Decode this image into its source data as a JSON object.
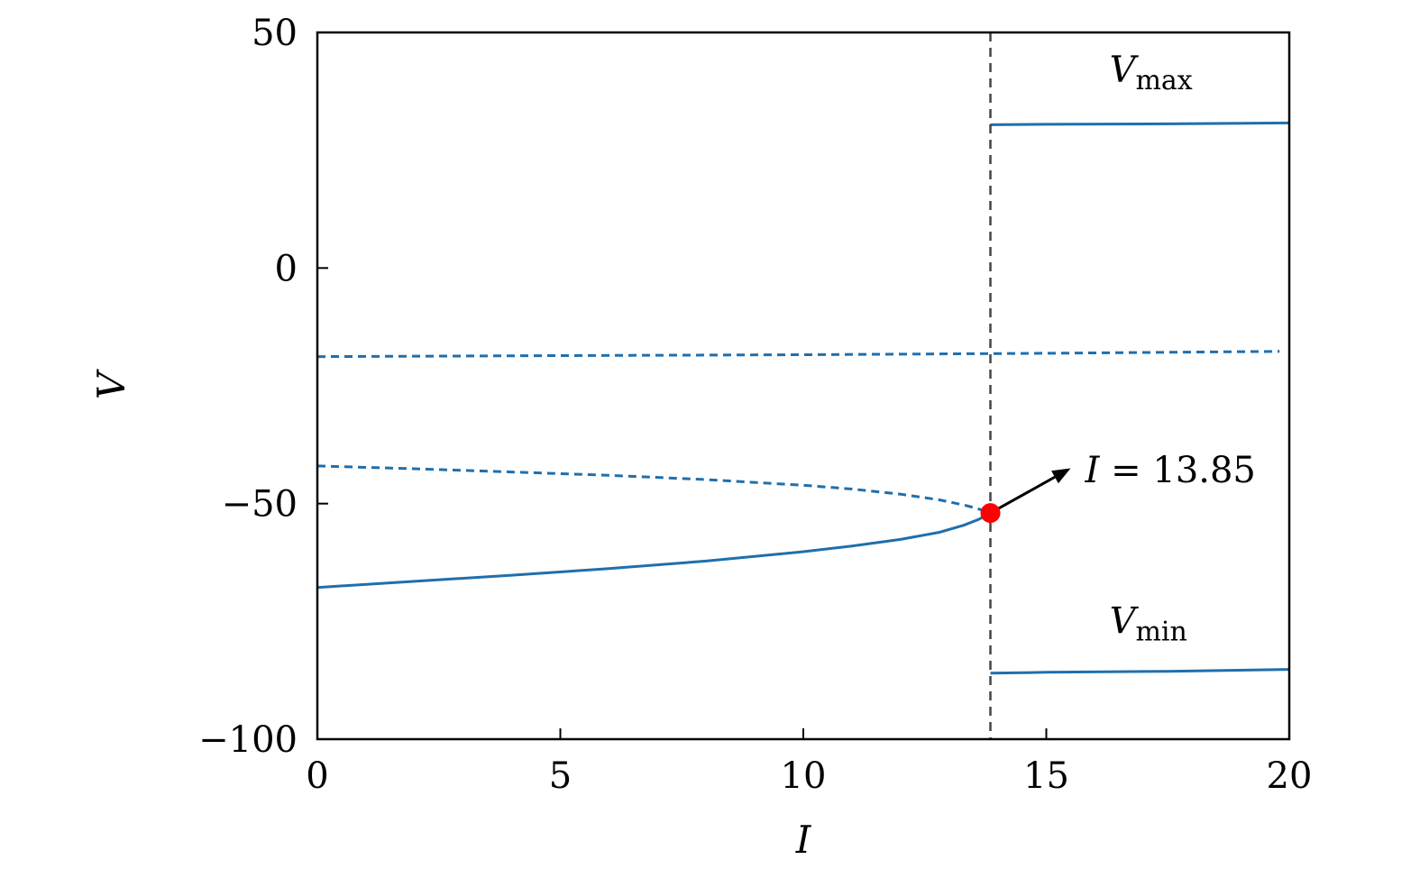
{
  "chart_data": {
    "type": "line",
    "xlabel": "I",
    "ylabel": "V",
    "xlim": [
      0,
      20
    ],
    "ylim": [
      -100,
      50
    ],
    "xticks": [
      0,
      5,
      10,
      15,
      20
    ],
    "yticks": [
      50,
      0,
      -50,
      -100
    ],
    "xtick_labels": [
      "0",
      "5",
      "10",
      "15",
      "20"
    ],
    "ytick_labels": [
      "50",
      "0",
      "−50",
      "−100"
    ],
    "grid": false,
    "colors": {
      "series": "#1f6fad",
      "marker": "#ff0000",
      "vline": "#444444",
      "arrow": "#000000"
    },
    "series": [
      {
        "style": "solid",
        "x": [
          0,
          2,
          4,
          6,
          8,
          10,
          11,
          12,
          12.8,
          13.3,
          13.6,
          13.85
        ],
        "y": [
          -67.8,
          -66.5,
          -65.2,
          -63.8,
          -62.2,
          -60.2,
          -59.0,
          -57.6,
          -56.1,
          -54.6,
          -53.4,
          -52.0
        ]
      },
      {
        "style": "dashed",
        "x": [
          0,
          2,
          4,
          6,
          8,
          10,
          11,
          12,
          12.8,
          13.3,
          13.6,
          13.85
        ],
        "y": [
          -42.0,
          -42.6,
          -43.3,
          -44.0,
          -44.9,
          -46.1,
          -46.9,
          -48.0,
          -49.2,
          -50.3,
          -51.1,
          -52.0
        ]
      },
      {
        "style": "dashed",
        "x": [
          0,
          5,
          10,
          15,
          19.8
        ],
        "y": [
          -18.8,
          -18.6,
          -18.4,
          -18.1,
          -17.7
        ]
      },
      {
        "style": "solid",
        "x": [
          13.85,
          15,
          17.5,
          20
        ],
        "y": [
          30.4,
          30.5,
          30.6,
          30.8
        ]
      },
      {
        "style": "solid",
        "x": [
          13.85,
          15,
          17.5,
          20
        ],
        "y": [
          -86.0,
          -85.8,
          -85.6,
          -85.2
        ]
      }
    ],
    "vline": {
      "x": 13.85,
      "style": "dashed"
    },
    "marker": {
      "x": 13.85,
      "y": -52.0
    },
    "arrow": {
      "from": [
        13.85,
        -52.0
      ],
      "to": [
        15.5,
        -42.5
      ]
    },
    "annotations": {
      "bifurcation": {
        "var": "I",
        "rest": " = 13.85",
        "x": 15.8,
        "y": -45.5
      },
      "vmax": {
        "var": "V",
        "sub": "max",
        "x": 16.3,
        "y": 39.5
      },
      "vmin": {
        "var": "V",
        "sub": "min",
        "x": 16.3,
        "y": -77.5
      }
    }
  }
}
